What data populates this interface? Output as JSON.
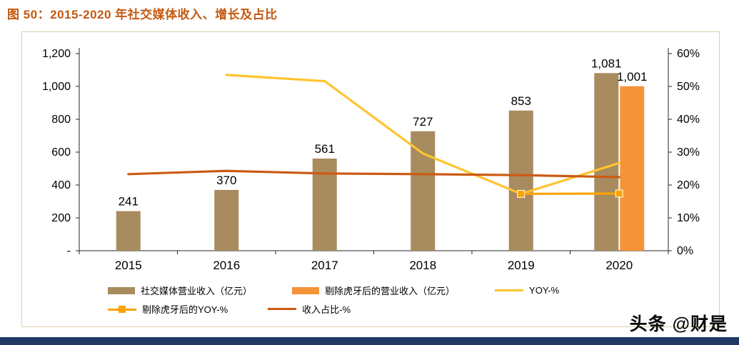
{
  "title": "图 50：2015-2020 年社交媒体收入、增长及占比",
  "watermark": "头条 @财是",
  "colors": {
    "title": "#C45911",
    "footer_bar": "#1F3864",
    "axis": "#262626",
    "chart_border": "#DCCFA9"
  },
  "chart_data": {
    "type": "bar",
    "subtype": "combo dual-axis bar+line",
    "categories": [
      "2015",
      "2016",
      "2017",
      "2018",
      "2019",
      "2020"
    ],
    "series": [
      {
        "name": "社交媒体营业收入（亿元）",
        "type": "bar",
        "axis": "left",
        "color": "#A88B5E",
        "values": [
          241,
          370,
          561,
          727,
          853,
          1081
        ],
        "labels": [
          "241",
          "370",
          "561",
          "727",
          "853",
          "1,081"
        ]
      },
      {
        "name": "剔除虎牙后的营业收入（亿元）",
        "type": "bar",
        "axis": "left",
        "color": "#F59338",
        "values": [
          null,
          null,
          null,
          null,
          null,
          1001
        ],
        "labels": [
          null,
          null,
          null,
          null,
          null,
          "1,001"
        ]
      },
      {
        "name": "YOY-%",
        "type": "line",
        "axis": "right",
        "color": "#FFC42E",
        "values": [
          null,
          53.5,
          51.6,
          29.6,
          17.3,
          26.7
        ]
      },
      {
        "name": "剔除虎牙后的YOY-%",
        "type": "line",
        "axis": "right",
        "color": "#FFA300",
        "marker": "square",
        "values": [
          null,
          null,
          null,
          null,
          17.3,
          17.4
        ]
      },
      {
        "name": "收入占比-%",
        "type": "line",
        "axis": "right",
        "color": "#CC5A13",
        "values": [
          23.3,
          24.3,
          23.5,
          23.3,
          23.0,
          22.4
        ]
      }
    ],
    "left_axis": {
      "min": 0,
      "max": 1200,
      "ticks": [
        "1,200",
        "1,000",
        "800",
        "600",
        "400",
        "200",
        "-"
      ]
    },
    "right_axis": {
      "min": 0,
      "max": 60,
      "ticks": [
        "60%",
        "50%",
        "40%",
        "30%",
        "20%",
        "10%",
        "0%"
      ]
    },
    "grid": false,
    "legend_position": "bottom"
  }
}
